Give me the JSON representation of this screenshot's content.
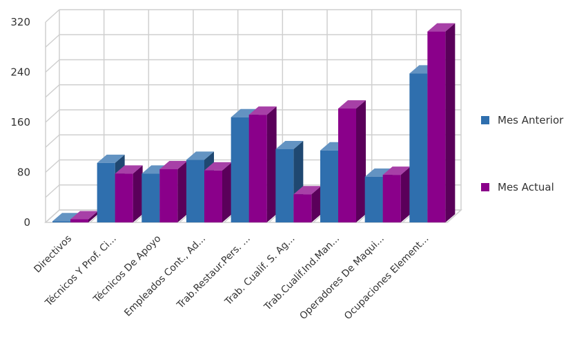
{
  "chart_data": {
    "type": "bar",
    "title": "",
    "xlabel": "",
    "ylabel": "",
    "ylim": [
      0,
      320
    ],
    "yticks": [
      0,
      80,
      160,
      240,
      320
    ],
    "grid": true,
    "legend_position": "right",
    "three_d": true,
    "categories": [
      "Directivos",
      "Técnicos Y Prof. Ci...",
      "Técnicos De Apoyo",
      "Empleados Cont., Ad...",
      "Trab.Restaur.Pers. ...",
      "Trab. Cualif. S. Ag...",
      "Trab.Cualif.Ind.Man...",
      "Operadores De Maqui...",
      "Ocupaciones Element..."
    ],
    "series": [
      {
        "name": "Mes Anterior",
        "color": "#2f6fae",
        "values": [
          2,
          95,
          78,
          100,
          168,
          117,
          115,
          73,
          238
        ]
      },
      {
        "name": "Mes Actual",
        "color": "#8a008a",
        "values": [
          5,
          78,
          85,
          83,
          172,
          45,
          182,
          76,
          305
        ]
      }
    ]
  }
}
